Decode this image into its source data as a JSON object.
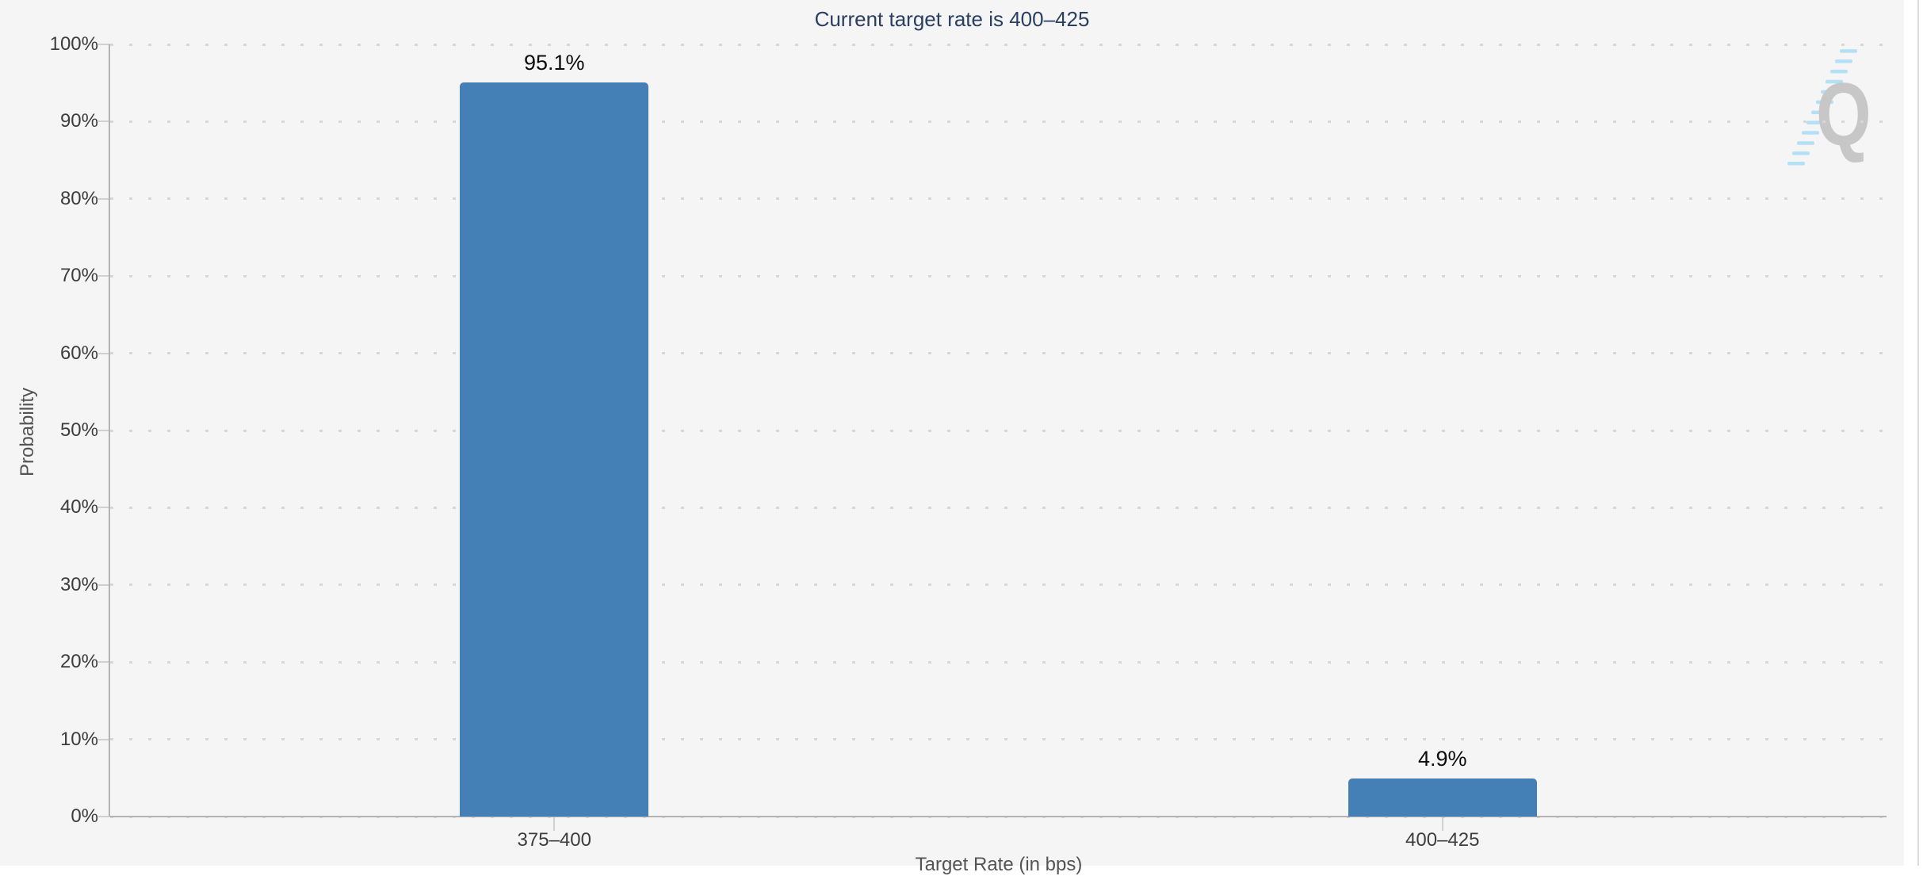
{
  "chart_data": {
    "type": "bar",
    "title": "Current target rate is 400–425",
    "categories": [
      "375–400",
      "400–425"
    ],
    "values": [
      95.1,
      4.9
    ],
    "value_labels": [
      "95.1%",
      "4.9%"
    ],
    "xlabel": "Target Rate (in bps)",
    "ylabel": "Probability",
    "ylim": [
      0,
      100
    ],
    "ytick_labels": [
      "0%",
      "10%",
      "20%",
      "30%",
      "40%",
      "50%",
      "60%",
      "70%",
      "80%",
      "90%",
      "100%"
    ],
    "grid": "horizontal-dotted",
    "legend_position": "none",
    "bar_color": "#447fb6"
  },
  "watermark": {
    "letter": "Q"
  },
  "colors": {
    "paper_bg": "#f5f5f5",
    "page_bg": "#ffffff",
    "axis_line": "#b3b3b3",
    "grid_dot": "#d7d7d7",
    "tick": "#d0d0d0",
    "title": "#2a3f5f",
    "tick_label": "#3d3d3d",
    "axis_title": "#545454",
    "value_label": "#0d0d0d",
    "bar": "#447fb6",
    "watermark_gray": "#c7c7c7",
    "watermark_blue": "#b4e0f5",
    "divider": "#dcdcdc"
  }
}
